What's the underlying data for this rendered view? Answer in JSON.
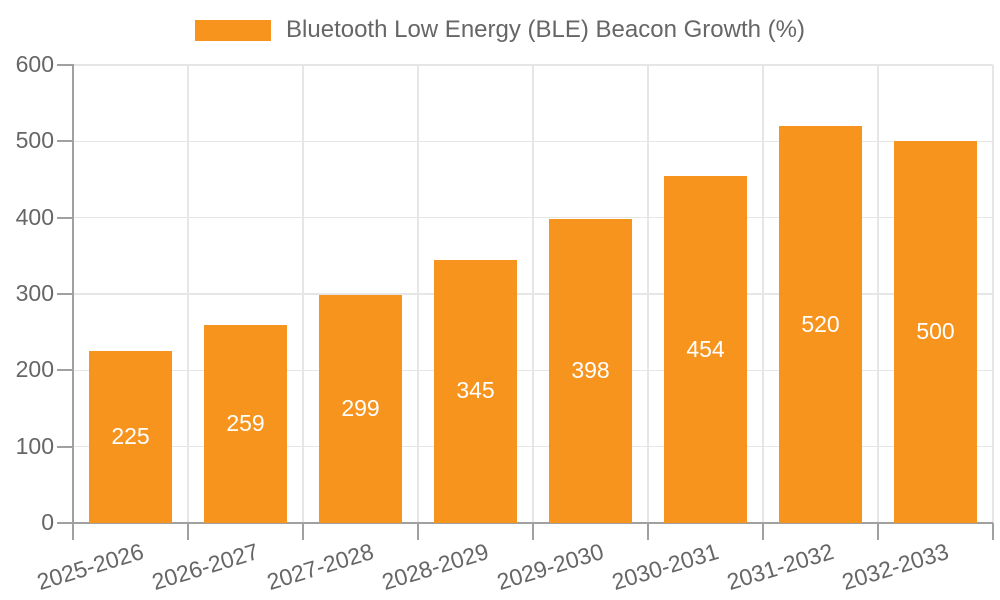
{
  "legend": {
    "label": "Bluetooth Low Energy (BLE) Beacon Growth (%)"
  },
  "chart_data": {
    "type": "bar",
    "title": "",
    "categories": [
      "2025-2026",
      "2026-2027",
      "2027-2028",
      "2028-2029",
      "2029-2030",
      "2030-2031",
      "2031-2032",
      "2032-2033"
    ],
    "series": [
      {
        "name": "Bluetooth Low Energy (BLE) Beacon Growth (%)",
        "values": [
          225,
          259,
          299,
          345,
          398,
          454,
          520,
          500
        ]
      }
    ],
    "value_labels": [
      "225",
      "259",
      "299",
      "345",
      "398",
      "454",
      "520",
      "500"
    ],
    "xlabel": "",
    "ylabel": "",
    "ylim": [
      0,
      600
    ],
    "ytick_step": 100,
    "yticks": [
      0,
      100,
      200,
      300,
      400,
      500,
      600
    ],
    "grid": true,
    "legend_position": "top",
    "colors": {
      "bar": "#F7941E",
      "value_label_text": "#FFFFFF",
      "axis_text": "#666666",
      "gridline": "#E6E6E6",
      "axis_line": "#A0A0A0",
      "background": "#FFFFFF"
    }
  }
}
